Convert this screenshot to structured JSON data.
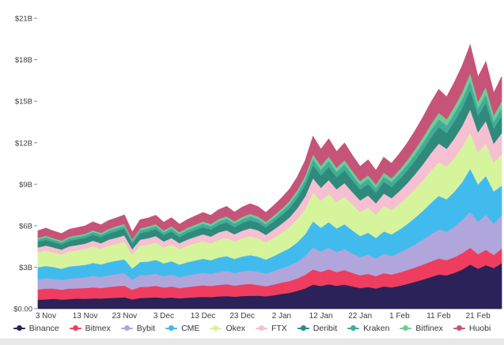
{
  "chart_data": {
    "type": "area",
    "stacked": true,
    "title": "",
    "legend_position": "bottom",
    "grid": false,
    "y_axis": {
      "tick_labels": [
        "$0.00",
        "$3B",
        "$6B",
        "$9B",
        "$12B",
        "$15B",
        "$18B",
        "$21B"
      ],
      "tick_values": [
        0,
        3,
        6,
        9,
        12,
        15,
        18,
        21
      ],
      "min": 0,
      "max": 21,
      "unit": "billion USD"
    },
    "x_axis": {
      "tick_labels": [
        "3 Nov",
        "13 Nov",
        "23 Nov",
        "3 Dec",
        "13 Dec",
        "23 Dec",
        "2 Jan",
        "12 Jan",
        "22 Jan",
        "1 Feb",
        "11 Feb",
        "21 Feb"
      ],
      "tick_indices": [
        1,
        6,
        11,
        16,
        21,
        26,
        31,
        36,
        41,
        46,
        51,
        56
      ]
    },
    "x": [
      "1 Nov",
      "3 Nov",
      "5 Nov",
      "7 Nov",
      "9 Nov",
      "11 Nov",
      "13 Nov",
      "15 Nov",
      "17 Nov",
      "19 Nov",
      "21 Nov",
      "23 Nov",
      "25 Nov",
      "27 Nov",
      "29 Nov",
      "1 Dec",
      "3 Dec",
      "5 Dec",
      "7 Dec",
      "9 Dec",
      "11 Dec",
      "13 Dec",
      "15 Dec",
      "17 Dec",
      "19 Dec",
      "21 Dec",
      "23 Dec",
      "25 Dec",
      "27 Dec",
      "29 Dec",
      "31 Dec",
      "2 Jan",
      "4 Jan",
      "6 Jan",
      "8 Jan",
      "10 Jan",
      "12 Jan",
      "14 Jan",
      "16 Jan",
      "18 Jan",
      "20 Jan",
      "22 Jan",
      "24 Jan",
      "26 Jan",
      "28 Jan",
      "30 Jan",
      "1 Feb",
      "3 Feb",
      "5 Feb",
      "7 Feb",
      "9 Feb",
      "11 Feb",
      "13 Feb",
      "15 Feb",
      "17 Feb",
      "19 Feb",
      "21 Feb",
      "23 Feb",
      "25 Feb",
      "27 Feb"
    ],
    "series": [
      {
        "name": "Binance",
        "color": "#2b2259",
        "values": [
          0.65,
          0.68,
          0.72,
          0.66,
          0.7,
          0.74,
          0.72,
          0.76,
          0.74,
          0.78,
          0.8,
          0.84,
          0.68,
          0.78,
          0.8,
          0.84,
          0.78,
          0.82,
          0.76,
          0.8,
          0.84,
          0.87,
          0.85,
          0.9,
          0.92,
          0.88,
          0.92,
          0.94,
          0.95,
          0.9,
          0.98,
          1.08,
          1.16,
          1.3,
          1.48,
          1.75,
          1.65,
          1.78,
          1.66,
          1.75,
          1.62,
          1.5,
          1.58,
          1.46,
          1.62,
          1.55,
          1.66,
          1.8,
          1.95,
          2.12,
          2.3,
          2.48,
          2.42,
          2.6,
          2.85,
          3.2,
          2.9,
          3.15,
          2.95,
          3.3
        ]
      },
      {
        "name": "Bitmex",
        "color": "#ee3d5e",
        "values": [
          0.75,
          0.78,
          0.74,
          0.72,
          0.76,
          0.74,
          0.78,
          0.8,
          0.76,
          0.8,
          0.84,
          0.84,
          0.7,
          0.8,
          0.8,
          0.82,
          0.76,
          0.8,
          0.74,
          0.78,
          0.8,
          0.83,
          0.8,
          0.83,
          0.86,
          0.8,
          0.84,
          0.86,
          0.78,
          0.74,
          0.78,
          0.82,
          0.85,
          0.9,
          0.98,
          1.1,
          1.02,
          1.08,
          1.0,
          1.05,
          0.98,
          0.92,
          0.95,
          0.9,
          0.96,
          0.93,
          0.97,
          1.0,
          1.04,
          1.08,
          1.12,
          1.15,
          1.1,
          1.14,
          1.18,
          1.22,
          1.05,
          1.12,
          0.95,
          1.05
        ]
      },
      {
        "name": "Bybit",
        "color": "#b0a6db",
        "values": [
          0.74,
          0.76,
          0.72,
          0.7,
          0.74,
          0.76,
          0.78,
          0.82,
          0.8,
          0.84,
          0.88,
          0.9,
          0.74,
          0.86,
          0.86,
          0.88,
          0.82,
          0.86,
          0.8,
          0.84,
          0.87,
          0.9,
          0.88,
          0.93,
          0.97,
          0.91,
          0.95,
          0.98,
          0.96,
          0.91,
          0.98,
          1.04,
          1.12,
          1.22,
          1.36,
          1.6,
          1.48,
          1.56,
          1.45,
          1.52,
          1.42,
          1.32,
          1.38,
          1.28,
          1.4,
          1.35,
          1.44,
          1.55,
          1.68,
          1.82,
          1.98,
          2.12,
          2.06,
          2.22,
          2.4,
          2.62,
          2.35,
          2.55,
          2.25,
          2.45
        ]
      },
      {
        "name": "CME",
        "color": "#41bbee",
        "values": [
          0.86,
          0.88,
          0.84,
          0.82,
          0.86,
          0.88,
          0.9,
          0.94,
          0.9,
          0.95,
          0.96,
          1.0,
          0.8,
          0.94,
          0.96,
          1.0,
          0.92,
          0.97,
          0.9,
          0.95,
          0.99,
          1.02,
          0.99,
          1.05,
          1.06,
          1.02,
          1.07,
          1.1,
          1.08,
          1.01,
          1.08,
          1.16,
          1.26,
          1.4,
          1.58,
          1.88,
          1.72,
          1.85,
          1.7,
          1.8,
          1.66,
          1.52,
          1.6,
          1.48,
          1.62,
          1.55,
          1.66,
          1.78,
          1.92,
          2.08,
          2.26,
          2.42,
          2.34,
          2.52,
          2.75,
          3.1,
          2.7,
          2.8,
          2.35,
          2.1
        ]
      },
      {
        "name": "Okex",
        "color": "#d6f49c",
        "values": [
          1.09,
          1.12,
          1.06,
          1.04,
          1.1,
          1.12,
          1.15,
          1.2,
          1.15,
          1.22,
          1.22,
          1.28,
          1.02,
          1.18,
          1.22,
          1.26,
          1.16,
          1.22,
          1.13,
          1.19,
          1.23,
          1.27,
          1.23,
          1.3,
          1.32,
          1.26,
          1.32,
          1.36,
          1.33,
          1.25,
          1.33,
          1.41,
          1.52,
          1.68,
          1.86,
          2.1,
          1.95,
          2.05,
          1.92,
          2.0,
          1.88,
          1.75,
          1.82,
          1.7,
          1.85,
          1.78,
          1.88,
          1.98,
          2.1,
          2.22,
          2.34,
          2.44,
          2.36,
          2.46,
          2.55,
          2.62,
          2.3,
          2.35,
          2.1,
          2.25
        ]
      },
      {
        "name": "FTX",
        "color": "#f6bfd2",
        "values": [
          0.35,
          0.36,
          0.35,
          0.34,
          0.36,
          0.37,
          0.38,
          0.4,
          0.39,
          0.41,
          0.44,
          0.45,
          0.38,
          0.44,
          0.46,
          0.46,
          0.43,
          0.45,
          0.42,
          0.45,
          0.47,
          0.5,
          0.48,
          0.52,
          0.55,
          0.52,
          0.55,
          0.58,
          0.58,
          0.54,
          0.59,
          0.64,
          0.7,
          0.78,
          0.88,
          1.02,
          0.94,
          1.0,
          0.92,
          0.98,
          0.9,
          0.83,
          0.87,
          0.81,
          0.89,
          0.85,
          0.91,
          0.98,
          1.06,
          1.15,
          1.25,
          1.34,
          1.29,
          1.4,
          1.52,
          1.68,
          1.48,
          1.62,
          1.35,
          1.55
        ]
      },
      {
        "name": "Deribit",
        "color": "#2f8a7c",
        "values": [
          0.4,
          0.41,
          0.39,
          0.38,
          0.4,
          0.41,
          0.42,
          0.44,
          0.43,
          0.45,
          0.48,
          0.48,
          0.41,
          0.47,
          0.49,
          0.49,
          0.45,
          0.48,
          0.44,
          0.47,
          0.49,
          0.51,
          0.5,
          0.53,
          0.56,
          0.52,
          0.55,
          0.57,
          0.56,
          0.53,
          0.57,
          0.61,
          0.66,
          0.73,
          0.82,
          0.95,
          0.88,
          0.94,
          0.86,
          0.92,
          0.84,
          0.78,
          0.82,
          0.76,
          0.83,
          0.8,
          0.85,
          0.91,
          0.98,
          1.05,
          1.12,
          1.19,
          1.14,
          1.22,
          1.3,
          1.38,
          1.18,
          1.3,
          1.08,
          1.22
        ]
      },
      {
        "name": "Kraken",
        "color": "#41ad99",
        "values": [
          0.17,
          0.18,
          0.17,
          0.16,
          0.17,
          0.18,
          0.18,
          0.19,
          0.19,
          0.2,
          0.21,
          0.21,
          0.18,
          0.21,
          0.22,
          0.22,
          0.21,
          0.22,
          0.21,
          0.22,
          0.23,
          0.25,
          0.24,
          0.26,
          0.28,
          0.26,
          0.28,
          0.3,
          0.26,
          0.24,
          0.26,
          0.28,
          0.3,
          0.34,
          0.38,
          0.45,
          0.41,
          0.44,
          0.4,
          0.43,
          0.39,
          0.36,
          0.38,
          0.35,
          0.39,
          0.37,
          0.4,
          0.43,
          0.46,
          0.5,
          0.54,
          0.57,
          0.55,
          0.59,
          0.62,
          0.66,
          0.56,
          0.62,
          0.52,
          0.58
        ]
      },
      {
        "name": "Bitfinex",
        "color": "#6fcc96",
        "values": [
          0.11,
          0.12,
          0.11,
          0.11,
          0.12,
          0.12,
          0.12,
          0.13,
          0.13,
          0.13,
          0.14,
          0.14,
          0.12,
          0.14,
          0.15,
          0.15,
          0.14,
          0.15,
          0.14,
          0.15,
          0.16,
          0.16,
          0.16,
          0.17,
          0.17,
          0.16,
          0.17,
          0.18,
          0.18,
          0.17,
          0.18,
          0.19,
          0.22,
          0.24,
          0.28,
          0.33,
          0.3,
          0.32,
          0.29,
          0.31,
          0.28,
          0.26,
          0.27,
          0.25,
          0.28,
          0.27,
          0.3,
          0.33,
          0.36,
          0.4,
          0.44,
          0.47,
          0.45,
          0.49,
          0.53,
          0.58,
          0.48,
          0.55,
          0.45,
          0.52
        ]
      },
      {
        "name": "Huobi",
        "color": "#c65478",
        "values": [
          0.52,
          0.54,
          0.51,
          0.5,
          0.53,
          0.54,
          0.56,
          0.59,
          0.57,
          0.6,
          0.6,
          0.64,
          0.5,
          0.61,
          0.6,
          0.63,
          0.58,
          0.61,
          0.56,
          0.59,
          0.62,
          0.64,
          0.62,
          0.67,
          0.7,
          0.65,
          0.69,
          0.72,
          0.7,
          0.66,
          0.71,
          0.77,
          0.84,
          0.93,
          1.08,
          1.28,
          1.18,
          1.26,
          1.15,
          1.22,
          1.12,
          1.04,
          1.09,
          1.01,
          1.11,
          1.06,
          1.14,
          1.22,
          1.32,
          1.44,
          1.56,
          1.67,
          1.6,
          1.74,
          1.88,
          2.02,
          1.75,
          1.8,
          1.6,
          1.75
        ]
      }
    ]
  }
}
